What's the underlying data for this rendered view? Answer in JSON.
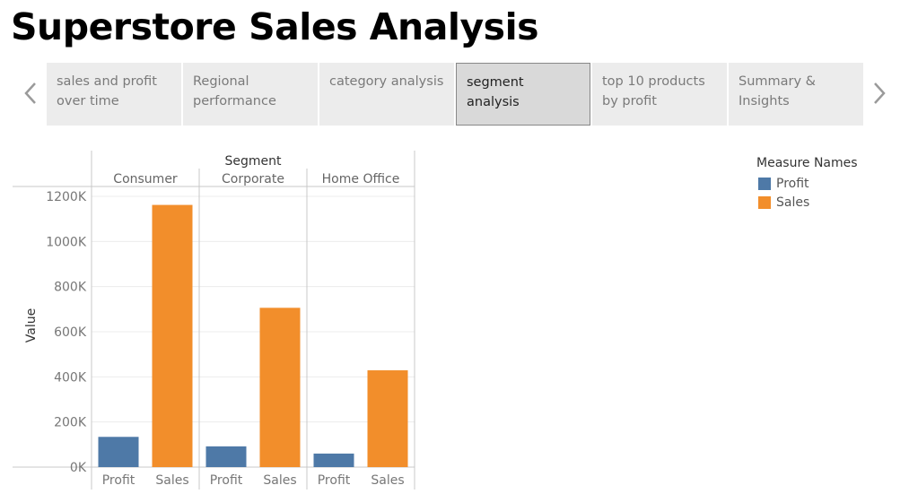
{
  "dashboard": {
    "title": "Superstore Sales Analysis"
  },
  "tabs": [
    {
      "label": "sales and profit over time",
      "active": false
    },
    {
      "label": "Regional performance",
      "active": false
    },
    {
      "label": "category analysis",
      "active": false
    },
    {
      "label": "segment analysis",
      "active": true
    },
    {
      "label": "top 10 products by profit",
      "active": false
    },
    {
      "label": "Summary & Insights",
      "active": false
    }
  ],
  "nav": {
    "prev_icon": "chevron-left-icon",
    "next_icon": "chevron-right-icon"
  },
  "legend": {
    "title": "Measure Names",
    "items": [
      {
        "label": "Profit",
        "color": "#4e79a7"
      },
      {
        "label": "Sales",
        "color": "#f28e2b"
      }
    ]
  },
  "chart_data": {
    "type": "bar",
    "column_header": "Segment",
    "ylabel": "Value",
    "ylim": [
      0,
      1200000
    ],
    "yticks": [
      {
        "value": 0,
        "label": "0K"
      },
      {
        "value": 200000,
        "label": "200K"
      },
      {
        "value": 400000,
        "label": "400K"
      },
      {
        "value": 600000,
        "label": "600K"
      },
      {
        "value": 800000,
        "label": "800K"
      },
      {
        "value": 1000000,
        "label": "1000K"
      },
      {
        "value": 1200000,
        "label": "1200K"
      }
    ],
    "grid": true,
    "groups": [
      {
        "segment": "Consumer",
        "bars": [
          {
            "measure": "Profit",
            "value": 134000
          },
          {
            "measure": "Sales",
            "value": 1162000
          }
        ]
      },
      {
        "segment": "Corporate",
        "bars": [
          {
            "measure": "Profit",
            "value": 92000
          },
          {
            "measure": "Sales",
            "value": 706000
          }
        ]
      },
      {
        "segment": "Home Office",
        "bars": [
          {
            "measure": "Profit",
            "value": 60000
          },
          {
            "measure": "Sales",
            "value": 429000
          }
        ]
      }
    ],
    "colors": {
      "Profit": "#4e79a7",
      "Sales": "#f28e2b"
    }
  }
}
